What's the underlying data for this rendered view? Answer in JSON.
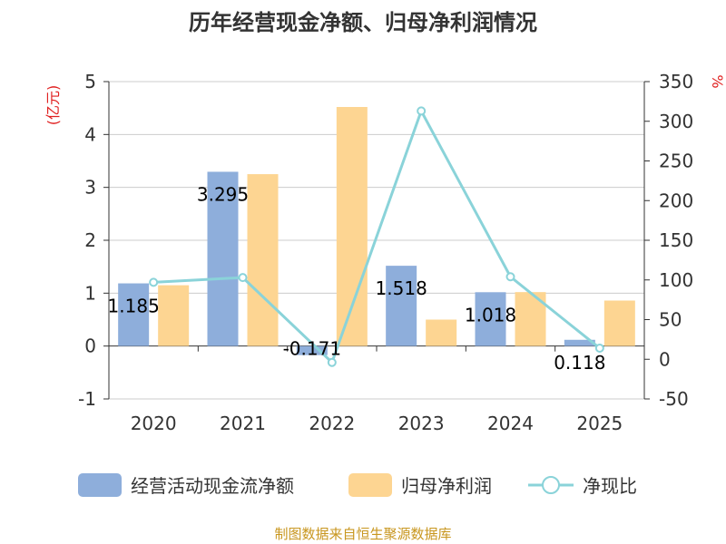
{
  "chart_data": {
    "type": "bar",
    "title": "历年经营现金净额、归母净利润情况",
    "categories": [
      "2020",
      "2021",
      "2022",
      "2023",
      "2024",
      "2025"
    ],
    "series": [
      {
        "name": "经营活动现金流净额",
        "type": "bar",
        "axis": "left",
        "color": "#8eaedb",
        "values": [
          1.185,
          3.295,
          -0.171,
          1.518,
          1.018,
          0.118
        ]
      },
      {
        "name": "归母净利润",
        "type": "bar",
        "axis": "left",
        "color": "#fdd592",
        "values": [
          1.15,
          3.25,
          4.52,
          0.5,
          1.02,
          0.86
        ]
      },
      {
        "name": "净现比",
        "type": "line",
        "axis": "right",
        "color": "#8ad3d9",
        "values": [
          97,
          103,
          -4,
          313,
          104,
          14
        ]
      }
    ],
    "data_labels": [
      "1.185",
      "3.295",
      "-0.171",
      "1.518",
      "1.018",
      "0.118"
    ],
    "y_left": {
      "unit": "(亿元)",
      "min": -1,
      "max": 5,
      "ticks": [
        "-1",
        "0",
        "1",
        "2",
        "3",
        "4",
        "5"
      ]
    },
    "y_right": {
      "unit": "%",
      "min": -50,
      "max": 350,
      "ticks": [
        "-50",
        "0",
        "50",
        "100",
        "150",
        "200",
        "250",
        "300",
        "350"
      ]
    },
    "grid": true,
    "legend_position": "bottom"
  },
  "source": "制图数据来自恒生聚源数据库"
}
